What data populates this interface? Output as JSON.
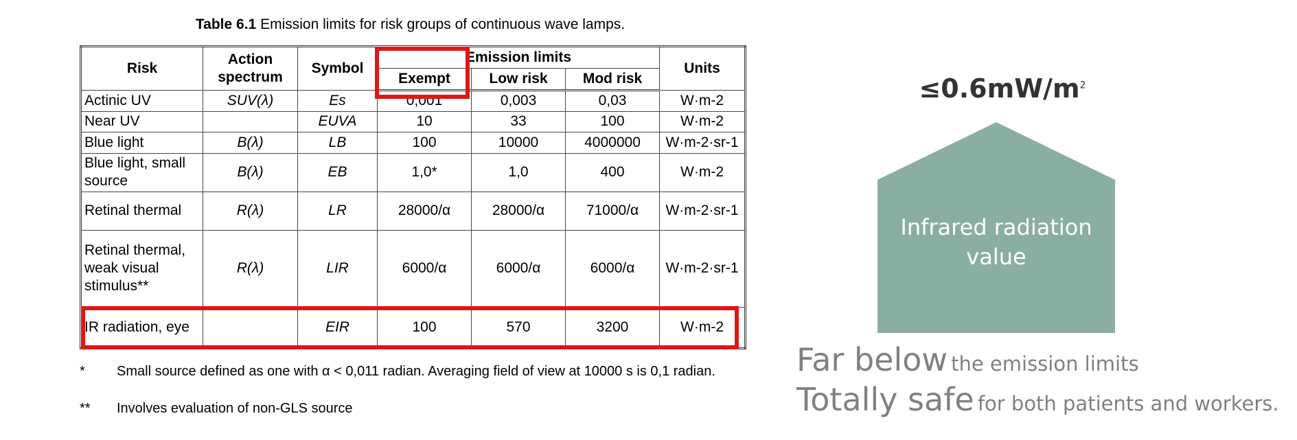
{
  "table": {
    "caption_bold": "Table 6.1",
    "caption_text": "Emission limits for risk groups of continuous wave lamps.",
    "headers": {
      "risk": "Risk",
      "action": "Action spectrum",
      "symbol": "Symbol",
      "emission_limits": "Emission limits",
      "units": "Units",
      "exempt": "Exempt",
      "low_risk": "Low risk",
      "mod_risk": "Mod risk"
    },
    "rows": [
      {
        "risk": "Actinic UV",
        "action": "SUV(λ)",
        "symbol": "Es",
        "exempt": "0,001",
        "low": "0,003",
        "mod": "0,03",
        "units": "W·m-2"
      },
      {
        "risk": "Near UV",
        "action": "",
        "symbol": "EUVA",
        "exempt": "10",
        "low": "33",
        "mod": "100",
        "units": "W·m-2"
      },
      {
        "risk": "Blue light",
        "action": "B(λ)",
        "symbol": "LB",
        "exempt": "100",
        "low": "10000",
        "mod": "4000000",
        "units": "W·m-2·sr-1"
      },
      {
        "risk": "Blue light, small source",
        "action": "B(λ)",
        "symbol": "EB",
        "exempt": "1,0*",
        "low": "1,0",
        "mod": "400",
        "units": "W·m-2"
      },
      {
        "risk": "Retinal thermal",
        "action": "R(λ)",
        "symbol": "LR",
        "exempt": "28000/α",
        "low": "28000/α",
        "mod": "71000/α",
        "units": "W·m-2·sr-1"
      },
      {
        "risk": "Retinal thermal, weak visual stimulus**",
        "action": "R(λ)",
        "symbol": "LIR",
        "exempt": "6000/α",
        "low": "6000/α",
        "mod": "6000/α",
        "units": "W·m-2·sr-1"
      },
      {
        "risk": "IR radiation, eye",
        "action": "",
        "symbol": "EIR",
        "exempt": "100",
        "low": "570",
        "mod": "3200",
        "units": "W·m-2"
      }
    ],
    "footnotes": [
      {
        "mark": "*",
        "text": "Small source defined as one with α < 0,011 radian. Averaging field of view at 10000 s is 0,1 radian."
      },
      {
        "mark": "**",
        "text": "Involves evaluation of non-GLS source"
      }
    ]
  },
  "infographic": {
    "value": "≤0.6mW/m",
    "value_superscript": "2",
    "label": "Infrared radiation value",
    "shape_color": "#8aaea2",
    "line1_big": "Far below",
    "line1_small": "the emission limits",
    "line2_big": "Totally safe",
    "line2_small": "for both patients and workers."
  },
  "colors": {
    "highlight": "#e01616",
    "text_gray": "#808080"
  }
}
